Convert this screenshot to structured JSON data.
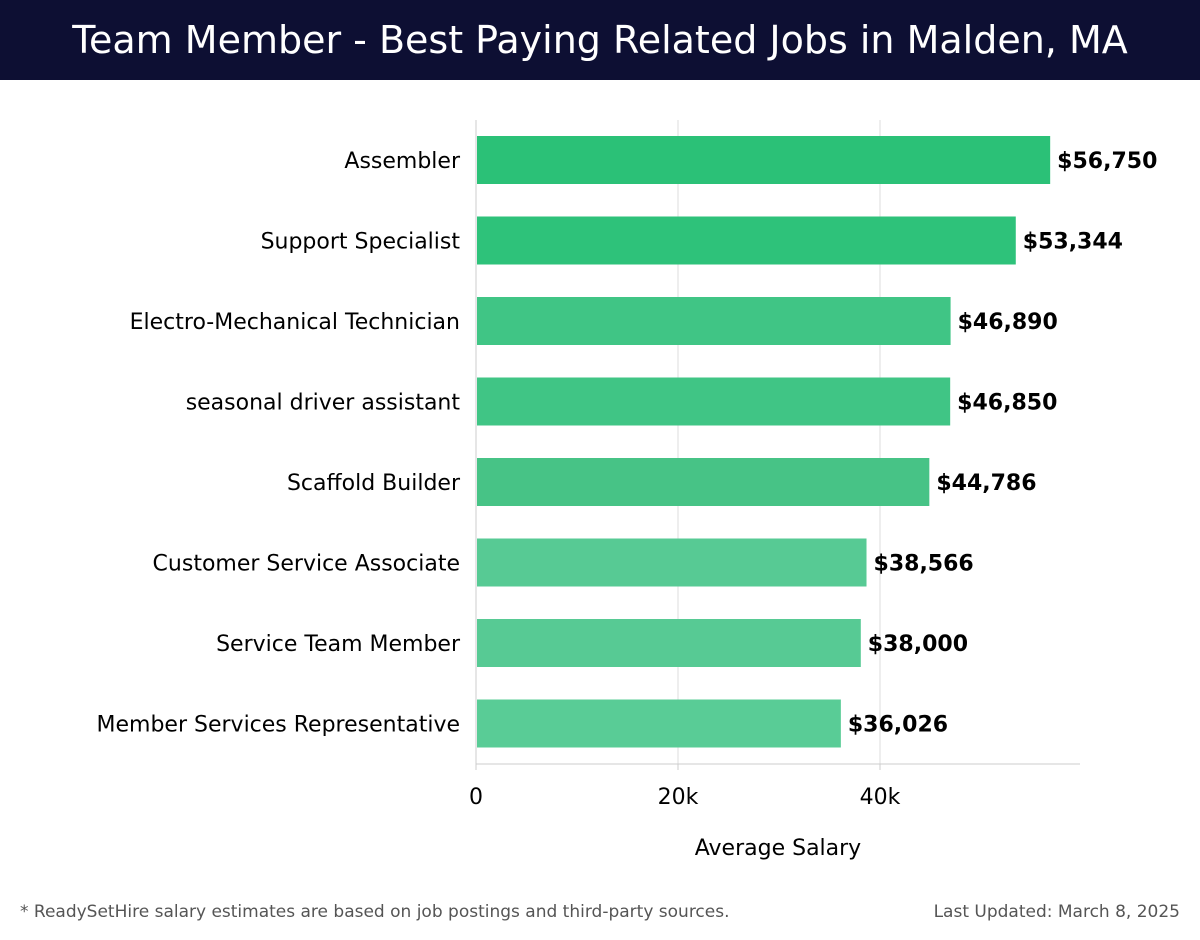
{
  "header": {
    "title": "Team Member - Best Paying Related Jobs in Malden, MA"
  },
  "footer": {
    "note": "* ReadySetHire salary estimates are based on job postings and third-party sources.",
    "updated": "Last Updated: March 8, 2025"
  },
  "colors": {
    "header_bg": "#0d0f33",
    "bar_colors": [
      "#2bc177",
      "#2ec27a",
      "#40c585",
      "#40c585",
      "#47c386",
      "#57ca94",
      "#57ca94",
      "#59cc96"
    ],
    "grid": "#dddddd",
    "axis": "#cccccc"
  },
  "chart_data": {
    "type": "bar",
    "orientation": "horizontal",
    "title": "Team Member - Best Paying Related Jobs in Malden, MA",
    "xlabel": "Average Salary",
    "ylabel": "",
    "categories": [
      "Assembler",
      "Support Specialist",
      "Electro-Mechanical Technician",
      "seasonal driver assistant",
      "Scaffold Builder",
      "Customer Service Associate",
      "Service Team Member",
      "Member Services Representative"
    ],
    "values": [
      56750,
      53344,
      46890,
      46850,
      44786,
      38566,
      38000,
      36026
    ],
    "value_labels": [
      "$56,750",
      "$53,344",
      "$46,890",
      "$46,850",
      "$44,786",
      "$38,566",
      "$38,000",
      "$36,026"
    ],
    "xticks": [
      0,
      20000,
      40000
    ],
    "xtick_labels": [
      "0",
      "20k",
      "40k"
    ],
    "xlim": [
      0,
      60000
    ],
    "grid": true
  }
}
